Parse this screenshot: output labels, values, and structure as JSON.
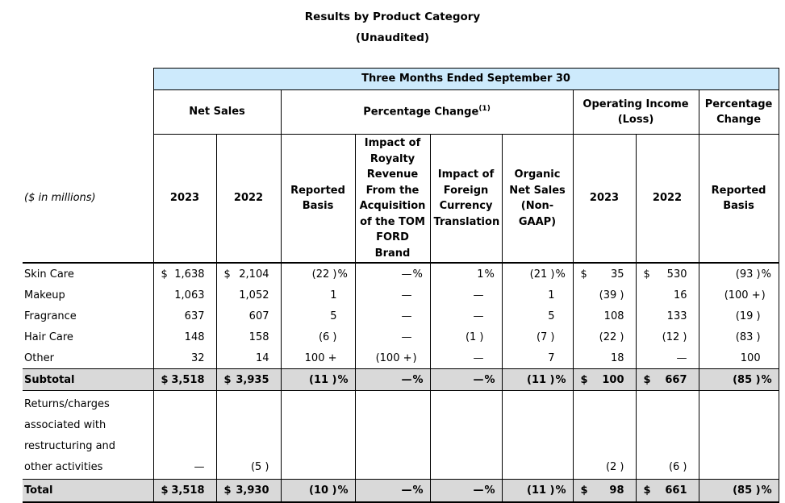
{
  "title": {
    "line1": "Results by Product Category",
    "line2": "(Unaudited)"
  },
  "table": {
    "band": "Three Months Ended September 30",
    "colors": {
      "band_bg": "#cdeafc",
      "highlight_bg": "#d9d9d9",
      "border": "#000000"
    },
    "groups": [
      {
        "label": "Net Sales",
        "span": 2
      },
      {
        "label": "Percentage Change",
        "sup": "(1)",
        "span": 4
      },
      {
        "label": "Operating Income (Loss)",
        "span": 2
      },
      {
        "label": "Percentage Change",
        "span": 1
      }
    ],
    "corner_label": "($ in millions)",
    "columns": [
      "2023",
      "2022",
      "Reported Basis",
      "Impact of Royalty Revenue From the Acquisition of the TOM FORD Brand",
      "Impact of Foreign Currency Translation",
      "Organic Net Sales (Non-GAAP)",
      "2023",
      "2022",
      "Reported Basis"
    ],
    "rows": [
      {
        "label": "Skin Care",
        "style": "plain",
        "cells": [
          {
            "d": "$",
            "v": "1,638"
          },
          {
            "d": "$",
            "v": "2,104"
          },
          {
            "v": "(22 )",
            "s": "%"
          },
          {
            "v": "—",
            "s": "%"
          },
          {
            "v": "1",
            "s": "%"
          },
          {
            "v": "(21 )",
            "s": "%"
          },
          {
            "d": "$",
            "v": "35"
          },
          {
            "d": "$",
            "v": "530"
          },
          {
            "v": "(93 )",
            "s": "%"
          }
        ]
      },
      {
        "label": "Makeup",
        "style": "plain",
        "cells": [
          {
            "v": "1,063"
          },
          {
            "v": "1,052"
          },
          {
            "v": "1",
            "s": ""
          },
          {
            "v": "—",
            "s": ""
          },
          {
            "v": "—",
            "s": ""
          },
          {
            "v": "1",
            "s": ""
          },
          {
            "v": "(39 )"
          },
          {
            "v": "16"
          },
          {
            "v": "(100 +",
            "s": ")"
          }
        ]
      },
      {
        "label": "Fragrance",
        "style": "plain",
        "cells": [
          {
            "v": "637"
          },
          {
            "v": "607"
          },
          {
            "v": "5",
            "s": ""
          },
          {
            "v": "—",
            "s": ""
          },
          {
            "v": "—",
            "s": ""
          },
          {
            "v": "5",
            "s": ""
          },
          {
            "v": "108"
          },
          {
            "v": "133"
          },
          {
            "v": "(19 )",
            "s": ""
          }
        ]
      },
      {
        "label": "Hair Care",
        "style": "plain",
        "cells": [
          {
            "v": "148"
          },
          {
            "v": "158"
          },
          {
            "v": "(6 )",
            "s": ""
          },
          {
            "v": "—",
            "s": ""
          },
          {
            "v": "(1 )",
            "s": ""
          },
          {
            "v": "(7 )",
            "s": ""
          },
          {
            "v": "(22 )"
          },
          {
            "v": "(12 )"
          },
          {
            "v": "(83 )",
            "s": ""
          }
        ]
      },
      {
        "label": "Other",
        "style": "plain",
        "cells": [
          {
            "v": "32"
          },
          {
            "v": "14"
          },
          {
            "v": "100 +",
            "s": ""
          },
          {
            "v": "(100 +",
            "s": ")"
          },
          {
            "v": "—",
            "s": ""
          },
          {
            "v": "7",
            "s": ""
          },
          {
            "v": "18"
          },
          {
            "v": "—"
          },
          {
            "v": "100",
            "s": ""
          }
        ]
      },
      {
        "label": "Subtotal",
        "style": "subtotal",
        "cells": [
          {
            "d": "$",
            "v": "3,518"
          },
          {
            "d": "$",
            "v": "3,935"
          },
          {
            "v": "(11 )",
            "s": "%"
          },
          {
            "v": "—",
            "s": "%"
          },
          {
            "v": "—",
            "s": "%"
          },
          {
            "v": "(11 )",
            "s": "%"
          },
          {
            "d": "$",
            "v": "100"
          },
          {
            "d": "$",
            "v": "667"
          },
          {
            "v": "(85 )",
            "s": "%"
          }
        ]
      },
      {
        "label_lines": [
          "Returns/charges",
          "associated with",
          "restructuring and",
          "other activities"
        ],
        "style": "returns",
        "cells": [
          {
            "v": "—"
          },
          {
            "v": "(5 )"
          },
          {},
          {},
          {},
          {},
          {
            "v": "(2 )"
          },
          {
            "v": "(6 )"
          },
          {}
        ]
      },
      {
        "label": "Total",
        "style": "total",
        "cells": [
          {
            "d": "$",
            "v": "3,518"
          },
          {
            "d": "$",
            "v": "3,930"
          },
          {
            "v": "(10 )",
            "s": "%"
          },
          {
            "v": "—",
            "s": "%"
          },
          {
            "v": "—",
            "s": "%"
          },
          {
            "v": "(11 )",
            "s": "%"
          },
          {
            "d": "$",
            "v": "98"
          },
          {
            "d": "$",
            "v": "661"
          },
          {
            "v": "(85 )",
            "s": "%"
          }
        ]
      }
    ]
  }
}
